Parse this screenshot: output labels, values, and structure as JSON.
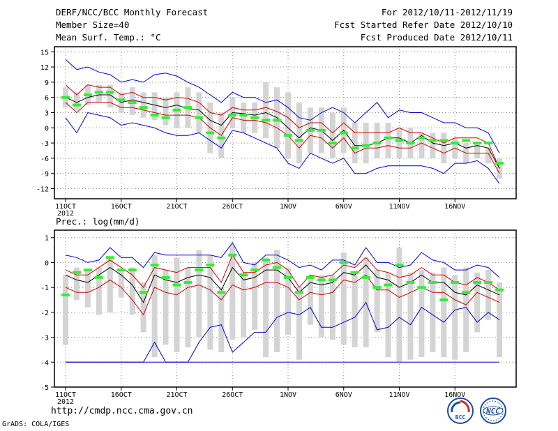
{
  "header": {
    "title": "DERF/NCC/BCC Monthly Forecast",
    "member_size": "Member Size=40",
    "variable": "Mean Surf. Temp.: °C",
    "period": "For 2012/10/11-2012/11/19",
    "started": "Fcst Started Refer Date 2012/10/10",
    "produced": "Fcst Produced Date 2012/10/11"
  },
  "footer": {
    "url": "http://cmdp.ncc.cma.gov.cn",
    "credit": "GrADS: COLA/IGES",
    "logo_bcc": "BCC",
    "logo_ncc": "NCC"
  },
  "colors": {
    "max_min": "#0000cc",
    "std_band": "#cc0000",
    "mean": "#000000",
    "median": "#33ee33",
    "bar": "#d4d4d4",
    "grid": "#888888"
  },
  "chart_data": [
    {
      "type": "line",
      "title": "Mean Surf. Temp.: °C",
      "x_tick_labels": [
        "11OCT",
        "16OCT",
        "21OCT",
        "26OCT",
        "1NOV",
        "6NOV",
        "11NOV",
        "16NOV"
      ],
      "x_year_label": "2012",
      "days": 40,
      "ylim": [
        -14,
        16
      ],
      "y_ticks": [
        -12,
        -9,
        -6,
        -3,
        0,
        3,
        6,
        9,
        12,
        15
      ],
      "y_tick_labels": [
        "-12",
        "-9",
        "-6",
        "-3",
        "0",
        "3",
        "6",
        "9",
        "12",
        "15"
      ],
      "series": [
        {
          "name": "max",
          "values": [
            13.5,
            11.5,
            12,
            11,
            10.5,
            9,
            9.5,
            9,
            10.5,
            10.8,
            10.2,
            9,
            8,
            6.5,
            5,
            7,
            6,
            6,
            5,
            5.5,
            4,
            2,
            1.5,
            3,
            4,
            3,
            1,
            3,
            5,
            2,
            3.5,
            3,
            3,
            2,
            1,
            1,
            0,
            0,
            -1,
            -5
          ]
        },
        {
          "name": "upper",
          "values": [
            8.5,
            6.5,
            8.5,
            8,
            8,
            6.5,
            7,
            6,
            6,
            5.5,
            6,
            5.8,
            5,
            3,
            2.5,
            4,
            3.5,
            3.5,
            4,
            3.2,
            2,
            0,
            1,
            1,
            -1,
            1,
            -1,
            -1,
            -1,
            -1,
            0,
            -1,
            -1,
            -2,
            -3,
            -2,
            -2,
            -2,
            -3,
            -8
          ]
        },
        {
          "name": "mean",
          "values": [
            6,
            5,
            6,
            6.5,
            6.5,
            5,
            5.5,
            5,
            4.5,
            4,
            4.5,
            3.8,
            3.5,
            1.5,
            0.5,
            3,
            2.8,
            2.5,
            3,
            2,
            0,
            -2,
            0,
            -0.5,
            -2.5,
            -0.5,
            -3.5,
            -3.5,
            -3,
            -2,
            -2,
            -3,
            -1.5,
            -3,
            -3.5,
            -3,
            -4,
            -3.5,
            -4,
            -8
          ]
        },
        {
          "name": "lower",
          "values": [
            5,
            3,
            5,
            5,
            5,
            4,
            4,
            3.5,
            3,
            2.5,
            2.5,
            2.5,
            2,
            0,
            -1.5,
            2,
            1.5,
            1.5,
            1,
            0,
            -1.5,
            -4,
            -1.5,
            -2,
            -4,
            -2,
            -5,
            -4,
            -4,
            -3.5,
            -4,
            -4,
            -3,
            -4,
            -5,
            -4,
            -5,
            -5,
            -5,
            -9
          ]
        },
        {
          "name": "min",
          "values": [
            2,
            -1,
            3,
            2.5,
            2,
            0.5,
            1,
            0.5,
            0,
            -1,
            -1.5,
            -1.5,
            -1,
            -2.5,
            -4,
            -0.5,
            -1,
            -2,
            -3,
            -4,
            -7,
            -8,
            -5,
            -6,
            -7,
            -6,
            -9,
            -9,
            -8,
            -7.5,
            -7.5,
            -7.5,
            -7.5,
            -8,
            -9,
            -7,
            -7,
            -6.5,
            -8,
            -11
          ]
        },
        {
          "name": "median",
          "values": [
            6,
            4.5,
            6.5,
            7,
            7,
            5.5,
            5,
            4,
            2.5,
            2,
            3.5,
            4,
            2,
            -1,
            -2,
            2.5,
            2.5,
            2,
            1.5,
            1.5,
            -1.5,
            -2.5,
            -0.5,
            -0.5,
            -3,
            -1,
            -4,
            -3.5,
            -3,
            -2,
            -2.5,
            -3,
            -2,
            -2.5,
            -2.5,
            -3,
            -2.5,
            -3,
            -3,
            -7
          ]
        },
        {
          "name": "bar_top",
          "values": [
            8,
            7,
            8.5,
            8.5,
            8.5,
            7,
            8,
            7,
            7,
            6,
            7,
            8,
            7,
            5,
            3,
            6,
            5,
            5,
            9,
            8,
            7,
            5,
            4,
            4,
            3,
            4,
            1,
            1,
            1,
            1,
            0,
            0,
            -1,
            -1,
            -1,
            -2,
            -3,
            -3,
            -4,
            -6
          ]
        },
        {
          "name": "bar_bottom",
          "values": [
            4,
            3.5,
            4.5,
            5,
            4,
            3,
            2.5,
            2,
            1.5,
            0.5,
            0,
            0,
            -1,
            -5,
            -6,
            0,
            -1,
            -1,
            -2,
            -4,
            -6,
            -7,
            -5,
            -5,
            -6,
            -5,
            -7,
            -7,
            -6,
            -6,
            -6,
            -6,
            -6,
            -6,
            -7,
            -6,
            -7,
            -6,
            -7,
            -10
          ]
        }
      ]
    },
    {
      "type": "line",
      "title": "Prec.: log(mm/d)",
      "x_tick_labels": [
        "11OCT",
        "16OCT",
        "21OCT",
        "26OCT",
        "1NOV",
        "6NOV",
        "11NOV",
        "16NOV"
      ],
      "x_year_label": "2012",
      "days": 40,
      "ylim": [
        -5,
        1.3
      ],
      "y_ticks": [
        -5,
        -4,
        -3,
        -2,
        -1,
        0,
        1
      ],
      "y_tick_labels": [
        "-5",
        "-4",
        "-3",
        "-2",
        "-1",
        "0",
        "1"
      ],
      "series": [
        {
          "name": "max",
          "values": [
            0.3,
            0.2,
            0,
            0.1,
            0.6,
            0.2,
            0.2,
            -0.2,
            0.4,
            0.3,
            0.3,
            0.3,
            0.3,
            0.3,
            0.2,
            0.8,
            0,
            -0.1,
            0.3,
            0.3,
            0.1,
            -0.2,
            -0.1,
            -0.3,
            0.1,
            0.1,
            -0.1,
            0.6,
            0,
            0,
            -0.2,
            -0.1,
            0.4,
            0.1,
            0,
            -0.3,
            -0.3,
            -0.1,
            -0.2,
            -0.6
          ]
        },
        {
          "name": "upper",
          "values": [
            -0.3,
            -0.5,
            -0.5,
            -0.2,
            0.1,
            -0.2,
            -0.5,
            -1,
            -0.2,
            -0.3,
            -0.4,
            -0.2,
            -0.2,
            -0.2,
            -0.8,
            0.3,
            -0.4,
            -0.4,
            -0.1,
            0,
            -0.3,
            -1,
            -0.5,
            -0.6,
            -0.5,
            -0.1,
            -0.2,
            0.2,
            -0.3,
            -0.4,
            -0.6,
            -0.5,
            -0.2,
            -0.5,
            -0.5,
            -0.8,
            -0.9,
            -0.6,
            -0.8,
            -1.1
          ]
        },
        {
          "name": "mean",
          "values": [
            -0.5,
            -0.7,
            -0.8,
            -0.5,
            -0.2,
            -0.5,
            -0.9,
            -1.6,
            -0.5,
            -0.7,
            -0.8,
            -0.6,
            -0.5,
            -0.6,
            -1.1,
            -0.2,
            -0.7,
            -0.6,
            -0.3,
            -0.3,
            -0.6,
            -1.2,
            -0.8,
            -0.9,
            -0.8,
            -0.4,
            -0.5,
            -0.1,
            -0.6,
            -0.7,
            -1,
            -0.8,
            -0.5,
            -0.8,
            -0.8,
            -1.2,
            -1.3,
            -0.9,
            -1.1,
            -1.3
          ]
        },
        {
          "name": "lower",
          "values": [
            -1,
            -1.2,
            -1.2,
            -1,
            -0.7,
            -1,
            -1.5,
            -2.1,
            -1,
            -1.2,
            -1.3,
            -1,
            -0.9,
            -1.1,
            -1.5,
            -0.9,
            -1.1,
            -1,
            -0.8,
            -0.8,
            -1,
            -1.5,
            -1.2,
            -1.3,
            -1.2,
            -0.7,
            -0.8,
            -0.5,
            -1.1,
            -1.1,
            -1.4,
            -1.2,
            -1,
            -1.2,
            -1.2,
            -1.5,
            -1.7,
            -1.2,
            -1.4,
            -1.6
          ]
        },
        {
          "name": "min",
          "values": [
            -4,
            -4,
            -4,
            -4,
            -4,
            -4,
            -4,
            -4,
            -3.2,
            -4,
            -4,
            -4,
            -3.2,
            -2.6,
            -2.5,
            -3.6,
            -3.2,
            -2.8,
            -2.8,
            -2.2,
            -2,
            -2.1,
            -1.8,
            -2.6,
            -2.6,
            -2.4,
            -2.2,
            -1.6,
            -2.7,
            -2.6,
            -2.2,
            -2.5,
            -1.8,
            -2.1,
            -2.4,
            -1.9,
            -1.8,
            -2.4,
            -2,
            -2.3
          ]
        },
        {
          "name": "median",
          "values": [
            -1.3,
            -0.4,
            -0.3,
            -0.6,
            0.2,
            -0.3,
            -0.3,
            -1.2,
            -0.1,
            -0.6,
            -0.9,
            -0.8,
            -0.3,
            -0.1,
            -1.2,
            0.3,
            -0.5,
            -0.3,
            0.1,
            -0.2,
            -0.6,
            -1.2,
            -0.6,
            -0.7,
            -0.7,
            0,
            -0.4,
            -0.6,
            -1,
            -0.9,
            -0.1,
            -0.8,
            -1,
            -0.8,
            -1.5,
            -0.8,
            -1.2,
            -0.8,
            -0.8,
            -1.1
          ]
        },
        {
          "name": "bar_top",
          "values": [
            -0.5,
            -0.2,
            -0.3,
            -0.2,
            0.2,
            -0.3,
            -0.2,
            -0.8,
            0.3,
            -0.3,
            0.2,
            -0.2,
            0.5,
            0.3,
            -1,
            0.7,
            -0.4,
            0,
            0.2,
            0.5,
            -0.2,
            -1,
            -0.5,
            -0.5,
            -0.5,
            0.4,
            -0.5,
            0.2,
            -0.3,
            -0.4,
            0.6,
            -0.4,
            -0.3,
            -0.4,
            -0.2,
            -0.5,
            -0.2,
            -0.4,
            -0.3,
            -0.8
          ]
        },
        {
          "name": "bar_bottom",
          "values": [
            -3.3,
            -1.5,
            -1.8,
            -2.1,
            -2,
            -1.4,
            -2.1,
            -2.8,
            -3.8,
            -3.3,
            -3.6,
            -3.4,
            -3,
            -3.5,
            -3.6,
            -3.1,
            -3,
            -2.7,
            -3.8,
            -3.6,
            -2.9,
            -3.9,
            -2.5,
            -3,
            -3.1,
            -3.3,
            -3.4,
            -3.4,
            -2.8,
            -3.8,
            -4,
            -3.9,
            -3.8,
            -3.6,
            -3.8,
            -3.9,
            -3.6,
            -2.8,
            -2.3,
            -3.8
          ]
        }
      ]
    }
  ]
}
